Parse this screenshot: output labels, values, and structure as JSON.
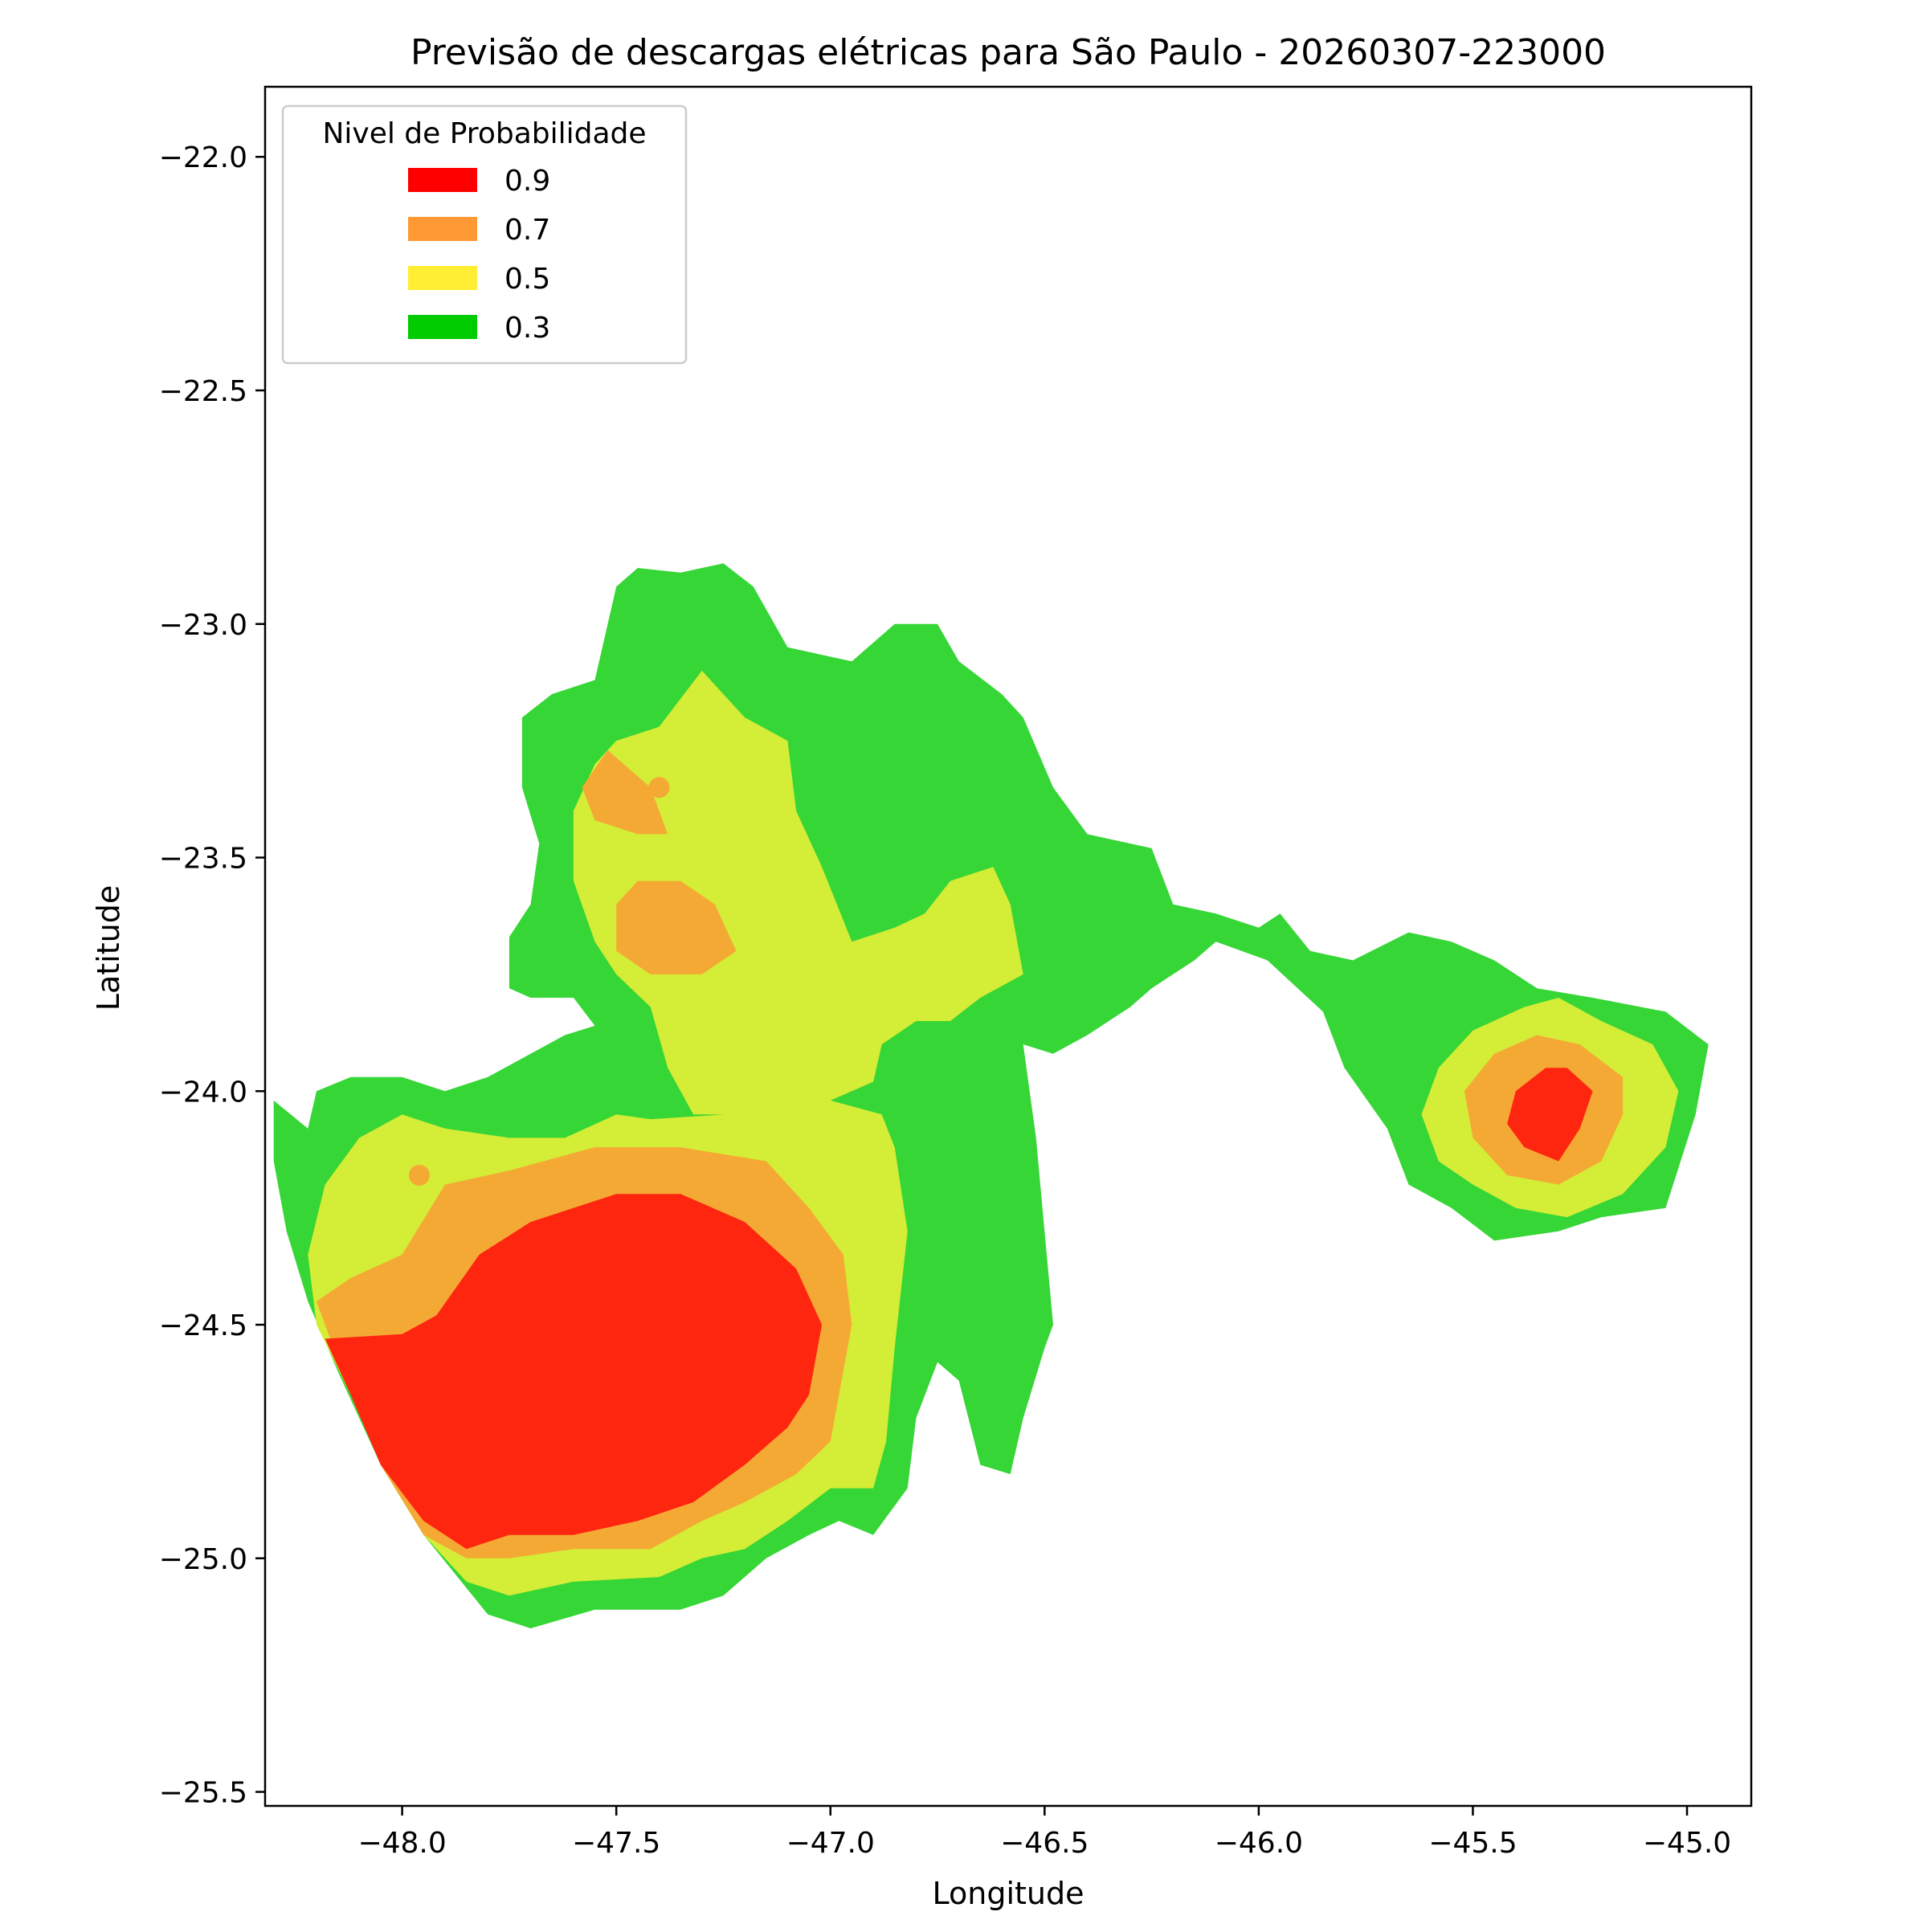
{
  "chart_data": {
    "type": "heatmap",
    "subtype": "filled-contour",
    "title": "Previsão de descargas elétricas para São Paulo - 20260307-223000",
    "xlabel": "Longitude",
    "ylabel": "Latitude",
    "xlim": [
      -48.32,
      -44.85
    ],
    "ylim": [
      -25.53,
      -21.85
    ],
    "x_ticks": [
      -48.0,
      -47.5,
      -47.0,
      -46.5,
      -46.0,
      -45.5,
      -45.0
    ],
    "y_ticks": [
      -22.0,
      -22.5,
      -23.0,
      -23.5,
      -24.0,
      -24.5,
      -25.0,
      -25.5
    ],
    "x_tick_labels": [
      "−48.0",
      "−47.5",
      "−47.0",
      "−46.5",
      "−46.0",
      "−45.5",
      "−45.0"
    ],
    "y_tick_labels": [
      "−22.0",
      "−22.5",
      "−23.0",
      "−23.5",
      "−24.0",
      "−24.5",
      "−25.0",
      "−25.5"
    ],
    "grid": false,
    "legend": {
      "title": "Nivel de Probabilidade",
      "placement": "top-left",
      "entries": [
        {
          "label": "0.9",
          "color": "#ff0000"
        },
        {
          "label": "0.7",
          "color": "#ff9933"
        },
        {
          "label": "0.5",
          "color": "#ffee33"
        },
        {
          "label": "0.3",
          "color": "#00cc00"
        }
      ]
    },
    "level_colors": {
      "0.3": "#36d636",
      "0.5": "#d4ed36",
      "0.7": "#f5a935",
      "0.9": "#ff2610",
      "0.3_dark": "#0ecc0e"
    },
    "regions": [
      {
        "level": 0.3,
        "points": [
          [
            -48.3,
            -24.02
          ],
          [
            -48.22,
            -24.08
          ],
          [
            -48.2,
            -24.0
          ],
          [
            -48.12,
            -23.97
          ],
          [
            -48.0,
            -23.97
          ],
          [
            -47.9,
            -24.0
          ],
          [
            -47.8,
            -23.97
          ],
          [
            -47.62,
            -23.88
          ],
          [
            -47.55,
            -23.86
          ],
          [
            -47.6,
            -23.8
          ],
          [
            -47.7,
            -23.8
          ],
          [
            -47.75,
            -23.78
          ],
          [
            -47.75,
            -23.67
          ],
          [
            -47.7,
            -23.6
          ],
          [
            -47.68,
            -23.47
          ],
          [
            -47.72,
            -23.35
          ],
          [
            -47.72,
            -23.2
          ],
          [
            -47.65,
            -23.15
          ],
          [
            -47.55,
            -23.12
          ],
          [
            -47.5,
            -22.92
          ],
          [
            -47.45,
            -22.88
          ],
          [
            -47.35,
            -22.89
          ],
          [
            -47.25,
            -22.87
          ],
          [
            -47.18,
            -22.92
          ],
          [
            -47.1,
            -23.05
          ],
          [
            -46.95,
            -23.08
          ],
          [
            -46.85,
            -23.0
          ],
          [
            -46.75,
            -23.0
          ],
          [
            -46.7,
            -23.08
          ],
          [
            -46.6,
            -23.15
          ],
          [
            -46.55,
            -23.2
          ],
          [
            -46.48,
            -23.35
          ],
          [
            -46.4,
            -23.45
          ],
          [
            -46.25,
            -23.48
          ],
          [
            -46.2,
            -23.6
          ],
          [
            -46.1,
            -23.62
          ],
          [
            -46.0,
            -23.65
          ],
          [
            -45.95,
            -23.62
          ],
          [
            -45.88,
            -23.7
          ],
          [
            -45.78,
            -23.72
          ],
          [
            -45.65,
            -23.66
          ],
          [
            -45.55,
            -23.68
          ],
          [
            -45.45,
            -23.72
          ],
          [
            -45.35,
            -23.78
          ],
          [
            -45.22,
            -23.8
          ],
          [
            -45.05,
            -23.83
          ],
          [
            -44.95,
            -23.9
          ],
          [
            -44.98,
            -24.05
          ],
          [
            -45.05,
            -24.25
          ],
          [
            -45.2,
            -24.27
          ],
          [
            -45.3,
            -24.3
          ],
          [
            -45.45,
            -24.32
          ],
          [
            -45.55,
            -24.25
          ],
          [
            -45.65,
            -24.2
          ],
          [
            -45.7,
            -24.08
          ],
          [
            -45.8,
            -23.95
          ],
          [
            -45.85,
            -23.83
          ],
          [
            -45.98,
            -23.72
          ],
          [
            -46.1,
            -23.68
          ],
          [
            -46.15,
            -23.72
          ],
          [
            -46.25,
            -23.78
          ],
          [
            -46.3,
            -23.82
          ],
          [
            -46.4,
            -23.88
          ],
          [
            -46.48,
            -23.92
          ],
          [
            -46.55,
            -23.9
          ],
          [
            -46.52,
            -24.1
          ],
          [
            -46.5,
            -24.3
          ],
          [
            -46.48,
            -24.5
          ],
          [
            -46.5,
            -24.55
          ],
          [
            -46.55,
            -24.7
          ],
          [
            -46.58,
            -24.82
          ],
          [
            -46.65,
            -24.8
          ],
          [
            -46.7,
            -24.62
          ],
          [
            -46.75,
            -24.58
          ],
          [
            -46.8,
            -24.7
          ],
          [
            -46.82,
            -24.85
          ],
          [
            -46.9,
            -24.95
          ],
          [
            -46.98,
            -24.92
          ],
          [
            -47.05,
            -24.95
          ],
          [
            -47.15,
            -25.0
          ],
          [
            -47.25,
            -25.08
          ],
          [
            -47.35,
            -25.11
          ],
          [
            -47.55,
            -25.11
          ],
          [
            -47.7,
            -25.15
          ],
          [
            -47.8,
            -25.12
          ],
          [
            -47.95,
            -24.95
          ],
          [
            -48.05,
            -24.8
          ],
          [
            -48.15,
            -24.6
          ],
          [
            -48.22,
            -24.45
          ],
          [
            -48.27,
            -24.3
          ],
          [
            -48.3,
            -24.15
          ]
        ]
      },
      {
        "level": 0.3,
        "points": [
          [
            -47.28,
            -23.0
          ],
          [
            -47.2,
            -23.05
          ],
          [
            -47.18,
            -23.15
          ],
          [
            -47.12,
            -23.2
          ],
          [
            -47.05,
            -23.3
          ],
          [
            -47.05,
            -23.45
          ],
          [
            -47.0,
            -23.55
          ],
          [
            -46.95,
            -23.68
          ],
          [
            -46.85,
            -23.72
          ],
          [
            -46.75,
            -23.7
          ],
          [
            -46.7,
            -23.62
          ],
          [
            -46.62,
            -23.55
          ],
          [
            -46.55,
            -23.48
          ],
          [
            -46.5,
            -23.55
          ],
          [
            -46.48,
            -23.72
          ],
          [
            -46.55,
            -23.82
          ],
          [
            -46.62,
            -23.88
          ],
          [
            -46.7,
            -23.92
          ],
          [
            -46.8,
            -23.9
          ],
          [
            -46.9,
            -23.86
          ],
          [
            -47.0,
            -23.82
          ],
          [
            -47.1,
            -23.78
          ],
          [
            -47.2,
            -23.75
          ],
          [
            -47.25,
            -23.6
          ],
          [
            -47.3,
            -23.5
          ],
          [
            -47.35,
            -23.4
          ],
          [
            -47.32,
            -23.2
          ],
          [
            -47.3,
            -23.1
          ]
        ]
      },
      {
        "level": 0.5,
        "points": [
          [
            -48.1,
            -24.1
          ],
          [
            -48.0,
            -24.05
          ],
          [
            -47.9,
            -24.08
          ],
          [
            -47.75,
            -24.1
          ],
          [
            -47.62,
            -24.1
          ],
          [
            -47.5,
            -24.05
          ],
          [
            -47.42,
            -24.06
          ],
          [
            -47.25,
            -24.05
          ],
          [
            -47.18,
            -24.0
          ],
          [
            -47.0,
            -24.02
          ],
          [
            -46.88,
            -24.05
          ],
          [
            -46.85,
            -24.12
          ],
          [
            -46.82,
            -24.3
          ],
          [
            -46.85,
            -24.55
          ],
          [
            -46.87,
            -24.75
          ],
          [
            -46.9,
            -24.85
          ],
          [
            -47.0,
            -24.85
          ],
          [
            -47.1,
            -24.92
          ],
          [
            -47.2,
            -24.98
          ],
          [
            -47.3,
            -25.0
          ],
          [
            -47.4,
            -25.04
          ],
          [
            -47.6,
            -25.05
          ],
          [
            -47.75,
            -25.08
          ],
          [
            -47.85,
            -25.05
          ],
          [
            -47.95,
            -24.95
          ],
          [
            -48.05,
            -24.8
          ],
          [
            -48.12,
            -24.65
          ],
          [
            -48.2,
            -24.5
          ],
          [
            -48.22,
            -24.35
          ],
          [
            -48.18,
            -24.2
          ]
        ]
      },
      {
        "level": 0.5,
        "points": [
          [
            -47.55,
            -23.3
          ],
          [
            -47.6,
            -23.4
          ],
          [
            -47.6,
            -23.55
          ],
          [
            -47.55,
            -23.68
          ],
          [
            -47.5,
            -23.75
          ],
          [
            -47.42,
            -23.82
          ],
          [
            -47.38,
            -23.95
          ],
          [
            -47.32,
            -24.05
          ],
          [
            -47.1,
            -24.05
          ],
          [
            -47.0,
            -24.02
          ],
          [
            -46.9,
            -23.98
          ],
          [
            -46.88,
            -23.9
          ],
          [
            -46.8,
            -23.85
          ],
          [
            -46.72,
            -23.85
          ],
          [
            -46.65,
            -23.8
          ],
          [
            -46.55,
            -23.75
          ],
          [
            -46.58,
            -23.6
          ],
          [
            -46.62,
            -23.52
          ],
          [
            -46.72,
            -23.55
          ],
          [
            -46.78,
            -23.62
          ],
          [
            -46.85,
            -23.65
          ],
          [
            -46.95,
            -23.68
          ],
          [
            -47.02,
            -23.52
          ],
          [
            -47.08,
            -23.4
          ],
          [
            -47.1,
            -23.25
          ],
          [
            -47.2,
            -23.2
          ],
          [
            -47.3,
            -23.1
          ],
          [
            -47.4,
            -23.22
          ],
          [
            -47.5,
            -23.25
          ]
        ]
      },
      {
        "level": 0.5,
        "points": [
          [
            -45.38,
            -23.82
          ],
          [
            -45.5,
            -23.87
          ],
          [
            -45.58,
            -23.95
          ],
          [
            -45.62,
            -24.05
          ],
          [
            -45.58,
            -24.15
          ],
          [
            -45.5,
            -24.2
          ],
          [
            -45.4,
            -24.25
          ],
          [
            -45.28,
            -24.27
          ],
          [
            -45.15,
            -24.22
          ],
          [
            -45.05,
            -24.12
          ],
          [
            -45.02,
            -24.0
          ],
          [
            -45.08,
            -23.9
          ],
          [
            -45.2,
            -23.85
          ],
          [
            -45.3,
            -23.8
          ]
        ]
      },
      {
        "level": 0.7,
        "points": [
          [
            -48.2,
            -24.45
          ],
          [
            -48.12,
            -24.4
          ],
          [
            -48.0,
            -24.35
          ],
          [
            -47.9,
            -24.2
          ],
          [
            -47.75,
            -24.17
          ],
          [
            -47.55,
            -24.12
          ],
          [
            -47.35,
            -24.12
          ],
          [
            -47.15,
            -24.15
          ],
          [
            -47.05,
            -24.25
          ],
          [
            -46.97,
            -24.35
          ],
          [
            -46.95,
            -24.5
          ],
          [
            -46.97,
            -24.6
          ],
          [
            -47.0,
            -24.75
          ],
          [
            -47.08,
            -24.82
          ],
          [
            -47.2,
            -24.88
          ],
          [
            -47.3,
            -24.92
          ],
          [
            -47.42,
            -24.98
          ],
          [
            -47.6,
            -24.98
          ],
          [
            -47.75,
            -25.0
          ],
          [
            -47.85,
            -25.0
          ],
          [
            -47.95,
            -24.95
          ],
          [
            -48.05,
            -24.8
          ],
          [
            -48.12,
            -24.65
          ]
        ]
      },
      {
        "level": 0.7,
        "points": [
          [
            -47.52,
            -23.27
          ],
          [
            -47.42,
            -23.35
          ],
          [
            -47.38,
            -23.45
          ],
          [
            -47.45,
            -23.45
          ],
          [
            -47.55,
            -23.42
          ],
          [
            -47.58,
            -23.35
          ]
        ]
      },
      {
        "level": 0.7,
        "points": [
          [
            -47.45,
            -23.55
          ],
          [
            -47.35,
            -23.55
          ],
          [
            -47.27,
            -23.6
          ],
          [
            -47.22,
            -23.7
          ],
          [
            -47.3,
            -23.75
          ],
          [
            -47.42,
            -23.75
          ],
          [
            -47.5,
            -23.7
          ],
          [
            -47.5,
            -23.6
          ]
        ]
      },
      {
        "level": 0.7,
        "points": [
          [
            -45.35,
            -23.88
          ],
          [
            -45.45,
            -23.92
          ],
          [
            -45.52,
            -24.0
          ],
          [
            -45.5,
            -24.1
          ],
          [
            -45.42,
            -24.18
          ],
          [
            -45.3,
            -24.2
          ],
          [
            -45.2,
            -24.15
          ],
          [
            -45.15,
            -24.05
          ],
          [
            -45.15,
            -23.97
          ],
          [
            -45.25,
            -23.9
          ]
        ]
      },
      {
        "level": 0.9,
        "points": [
          [
            -48.18,
            -24.53
          ],
          [
            -48.0,
            -24.52
          ],
          [
            -47.92,
            -24.48
          ],
          [
            -47.82,
            -24.35
          ],
          [
            -47.7,
            -24.28
          ],
          [
            -47.5,
            -24.22
          ],
          [
            -47.35,
            -24.22
          ],
          [
            -47.2,
            -24.28
          ],
          [
            -47.08,
            -24.38
          ],
          [
            -47.02,
            -24.5
          ],
          [
            -47.05,
            -24.65
          ],
          [
            -47.1,
            -24.72
          ],
          [
            -47.2,
            -24.8
          ],
          [
            -47.32,
            -24.88
          ],
          [
            -47.45,
            -24.92
          ],
          [
            -47.6,
            -24.95
          ],
          [
            -47.75,
            -24.95
          ],
          [
            -47.85,
            -24.98
          ],
          [
            -47.95,
            -24.92
          ],
          [
            -48.05,
            -24.8
          ],
          [
            -48.12,
            -24.65
          ]
        ]
      },
      {
        "level": 0.9,
        "points": [
          [
            -45.33,
            -23.95
          ],
          [
            -45.4,
            -24.0
          ],
          [
            -45.42,
            -24.07
          ],
          [
            -45.38,
            -24.12
          ],
          [
            -45.3,
            -24.15
          ],
          [
            -45.25,
            -24.08
          ],
          [
            -45.22,
            -24.0
          ],
          [
            -45.28,
            -23.95
          ]
        ]
      }
    ],
    "markers": [
      {
        "lon": -47.4,
        "lat": -23.35,
        "level": 0.7
      },
      {
        "lon": -47.96,
        "lat": -24.18,
        "level": 0.7
      }
    ]
  }
}
